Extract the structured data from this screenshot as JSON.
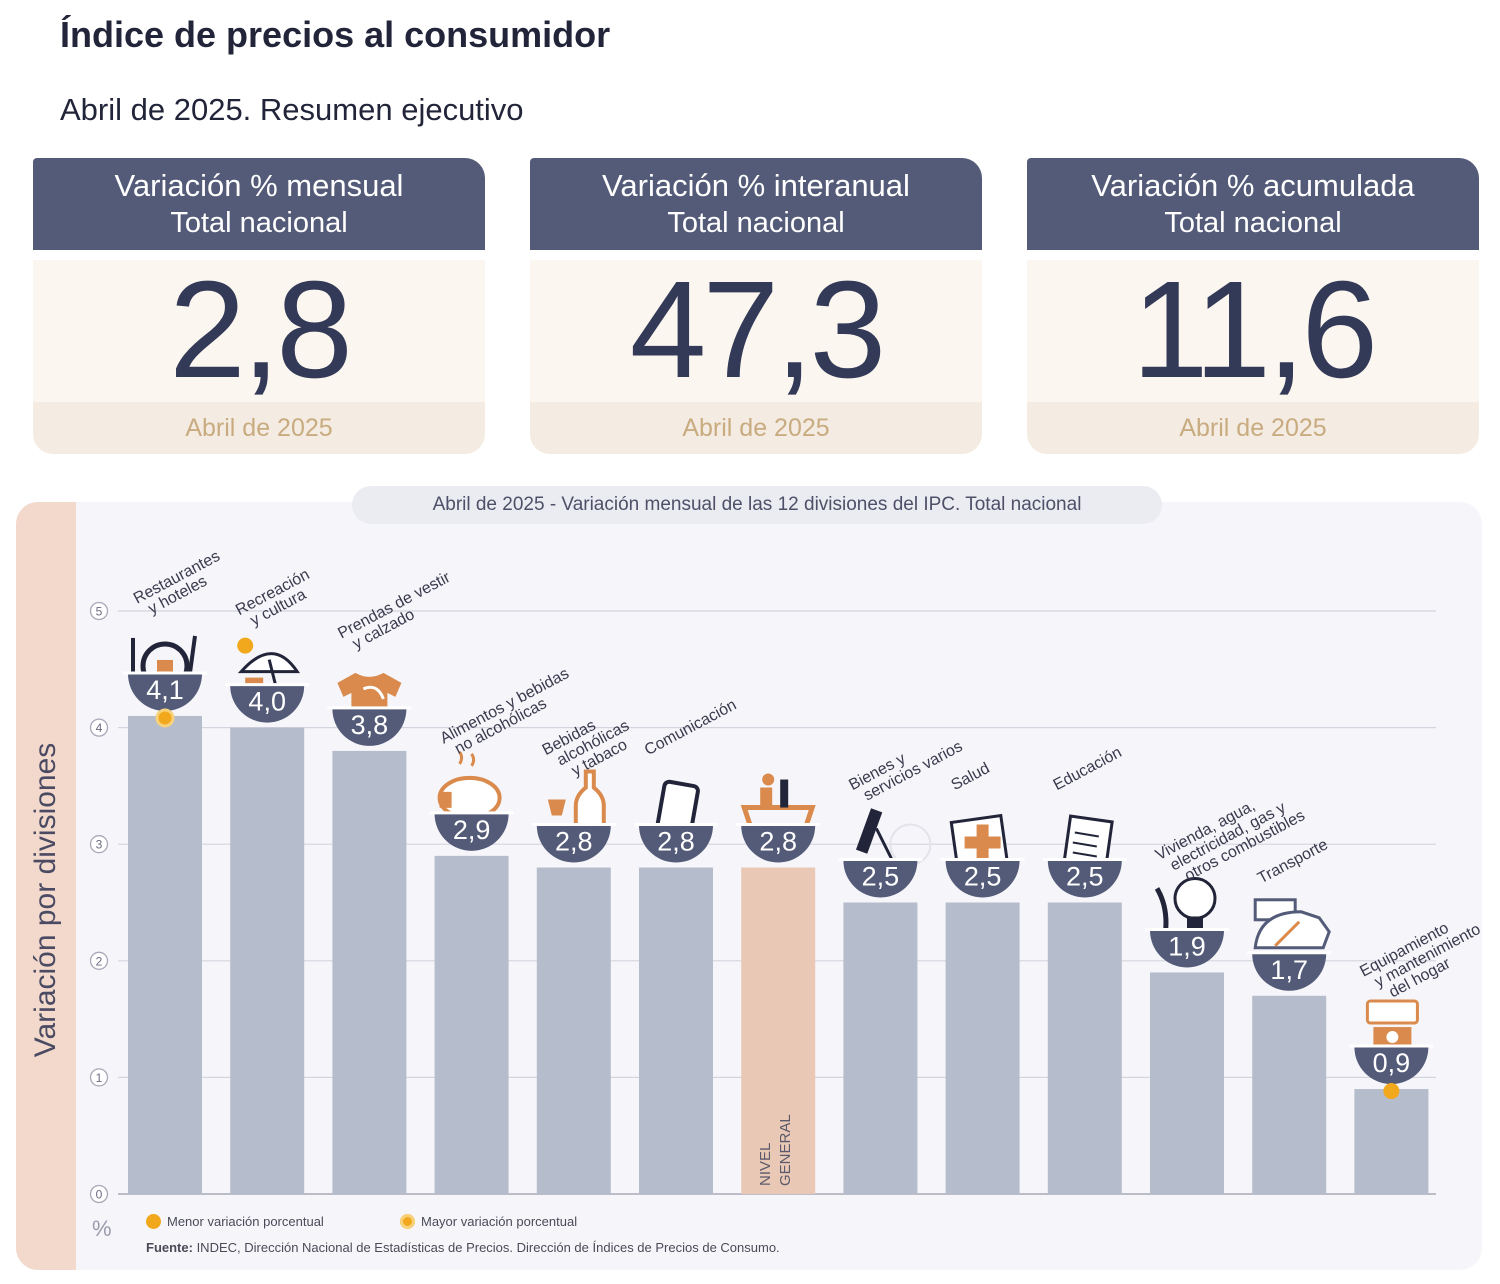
{
  "header": {
    "title": "Índice de precios al consumidor",
    "subtitle": "Abril de 2025. Resumen ejecutivo"
  },
  "cards": [
    {
      "title": "Variación % mensual",
      "scope": "Total nacional",
      "value": "2,8",
      "period": "Abril de 2025"
    },
    {
      "title": "Variación % interanual",
      "scope": "Total nacional",
      "value": "47,3",
      "period": "Abril de 2025"
    },
    {
      "title": "Variación % acumulada",
      "scope": "Total nacional",
      "value": "11,6",
      "period": "Abril de 2025"
    }
  ],
  "chart_data": {
    "type": "bar",
    "title": "Abril de 2025 - Variación mensual de las 12 divisiones del IPC. Total nacional",
    "ylabel": "Variación por divisiones",
    "yunit": "%",
    "ylim": [
      0,
      5
    ],
    "yticks": [
      "0",
      "1",
      "2",
      "3",
      "4",
      "5"
    ],
    "grid": true,
    "categories": [
      [
        "Restaurantes",
        "y hoteles"
      ],
      [
        "Recreación",
        "y cultura"
      ],
      [
        "Prendas de vestir",
        "y calzado"
      ],
      [
        "Alimentos y bebidas",
        "no alcohólicas"
      ],
      [
        "Bebidas",
        "alcohólicas",
        "y tabaco"
      ],
      [
        "Comunicación"
      ],
      [],
      [
        "Bienes y",
        "servicios varios"
      ],
      [
        "Salud"
      ],
      [
        "Educación"
      ],
      [
        "Vivienda, agua,",
        "electricidad, gas y",
        "otros combustibles"
      ],
      [
        "Transporte"
      ],
      [
        "Equipamiento",
        "y mantenimiento",
        "del hogar"
      ]
    ],
    "values": [
      4.1,
      4.0,
      3.8,
      2.9,
      2.8,
      2.8,
      2.8,
      2.5,
      2.5,
      2.5,
      1.9,
      1.7,
      0.9
    ],
    "value_labels": [
      "4,1",
      "4,0",
      "3,8",
      "2,9",
      "2,8",
      "2,8",
      "2,8",
      "2,5",
      "2,5",
      "2,5",
      "1,9",
      "1,7",
      "0,9"
    ],
    "icons": [
      "utensils-icon",
      "beach-umbrella-icon",
      "tshirt-icon",
      "roast-chicken-icon",
      "wine-bottle-icon",
      "smartphone-icon",
      "shopping-basket-icon",
      "comb-scissors-icon",
      "medical-cross-icon",
      "notebook-icon",
      "lightbulb-icon",
      "bus-card-icon",
      "air-conditioner-icon"
    ],
    "general_level": {
      "label": [
        "NIVEL",
        "GENERAL"
      ]
    },
    "highlights": {
      "max_index": 0,
      "min_index": 12
    },
    "colors": {
      "bar": "#b5bccb",
      "general": "#eac8b6",
      "badge": "#545b78",
      "icon": "#d98a4c",
      "dot": "#f2a81c"
    },
    "legend": [
      {
        "label": "Menor variación porcentual"
      },
      {
        "label": "Mayor variación porcentual"
      }
    ]
  },
  "footer": {
    "source_prefix": "Fuente:",
    "source_text": " INDEC, Dirección Nacional de Estadísticas de Precios. Dirección de Índices de Precios de Consumo."
  }
}
